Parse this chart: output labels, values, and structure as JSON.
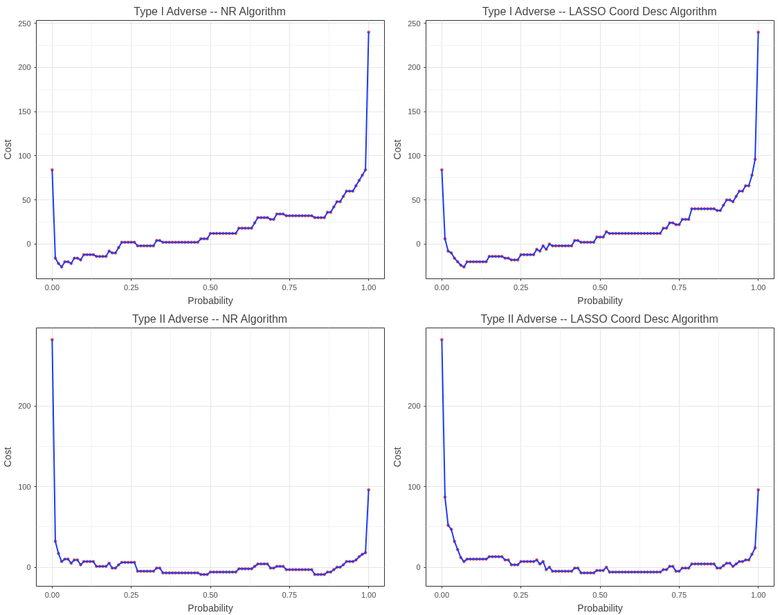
{
  "chart_data": [
    {
      "type": "line",
      "title": "Type I Adverse -- NR Algorithm",
      "xlabel": "Probability",
      "ylabel": "Cost",
      "marker": "circle",
      "grid": true,
      "xlim": [
        -0.05,
        1.05
      ],
      "xticks": [
        {
          "value": 0,
          "label": "0.00"
        },
        {
          "value": 0.25,
          "label": "0.25"
        },
        {
          "value": 0.5,
          "label": "0.50"
        },
        {
          "value": 0.75,
          "label": "0.75"
        },
        {
          "value": 1,
          "label": "1.00"
        }
      ],
      "ylim": [
        -39.3,
        253.3
      ],
      "yticks": [
        0,
        50,
        100,
        150,
        200,
        250
      ],
      "x": [
        0,
        0.01,
        0.02,
        0.03,
        0.04,
        0.05,
        0.06,
        0.07,
        0.08,
        0.09,
        0.1,
        0.11,
        0.12,
        0.13,
        0.14,
        0.15,
        0.16,
        0.17,
        0.18,
        0.19,
        0.2,
        0.21,
        0.22,
        0.23,
        0.24,
        0.25,
        0.26,
        0.27,
        0.28,
        0.29,
        0.3,
        0.31,
        0.32,
        0.33,
        0.34,
        0.35,
        0.36,
        0.37,
        0.38,
        0.39,
        0.4,
        0.41,
        0.42,
        0.43,
        0.44,
        0.45,
        0.46,
        0.47,
        0.48,
        0.49,
        0.5,
        0.51,
        0.52,
        0.53,
        0.54,
        0.55,
        0.56,
        0.57,
        0.58,
        0.59,
        0.6,
        0.61,
        0.62,
        0.63,
        0.64,
        0.65,
        0.66,
        0.67,
        0.68,
        0.69,
        0.7,
        0.71,
        0.72,
        0.73,
        0.74,
        0.75,
        0.76,
        0.77,
        0.78,
        0.79,
        0.8,
        0.81,
        0.82,
        0.83,
        0.84,
        0.85,
        0.86,
        0.87,
        0.88,
        0.89,
        0.9,
        0.91,
        0.92,
        0.93,
        0.94,
        0.95,
        0.96,
        0.97,
        0.98,
        0.99,
        1
      ],
      "series": [
        {
          "color": "#1a3cf5",
          "colors": [
            "#e8383d",
            "#e8383d",
            "#e8383d",
            "#e8383d",
            "#e8383d",
            "#e8383d",
            "#e8383d",
            "#e8383d",
            "#e8383d",
            "#e8383d",
            "#e8383d",
            "#e8383d",
            "#e8383d",
            "#e8383d",
            "#e8383d",
            "#e8383d",
            "#e8383d",
            "#e8383d",
            "#e8383d",
            "#e8383d",
            "#e8383d",
            "#e8383d",
            "#e8383d",
            "#e8383d",
            "#e8383d",
            "#e8383d",
            "#e8383d",
            "#e8383d",
            "#e8383d",
            "#e8383d",
            "#e8383d",
            "#e8383d",
            "#e8383d",
            "#e8383d",
            "#e8383d",
            "#e8383d",
            "#e8383d",
            "#e8383d",
            "#e8383d",
            "#e8383d",
            "#e8383d",
            "#e8383d",
            "#e8383d",
            "#e8383d",
            "#e8383d",
            "#e8383d",
            "#e8383d",
            "#e8383d",
            "#e8383d",
            "#e8383d",
            "#e8383d",
            "#e8383d",
            "#e8383d",
            "#e8383d",
            "#e8383d",
            "#e8383d",
            "#e8383d",
            "#e8383d",
            "#e8383d",
            "#e8383d",
            "#e8383d",
            "#e8383d",
            "#e8383d",
            "#e8383d",
            "#e8383d",
            "#e8383d",
            "#e8383d",
            "#e8383d",
            "#e8383d",
            "#e8383d",
            "#e8383d",
            "#e8383d",
            "#e8383d",
            "#e8383d",
            "#e8383d",
            "#e8383d",
            "#e8383d",
            "#e8383d",
            "#e8383d",
            "#e8383d",
            "#e8383d",
            "#e8383d",
            "#e8383d",
            "#e8383d",
            "#e8383d",
            "#e8383d",
            "#e8383d",
            "#e8383d",
            "#e8383d",
            "#e8383d",
            "#e8383d",
            "#e8383d",
            "#e8383d",
            "#e8383d",
            "#e8383d",
            "#e8383d",
            "#e8383d",
            "#e8383d",
            "#e8383d",
            "#e8383d",
            "#e8383d"
          ],
          "values": [
            84,
            -16,
            -22,
            -26,
            -20,
            -20,
            -22,
            -16,
            -16,
            -18,
            -12,
            -12,
            -12,
            -12,
            -14,
            -14,
            -14,
            -14,
            -8,
            -10,
            -10,
            -4,
            2,
            2,
            2,
            2,
            2,
            -2,
            -2,
            -2,
            -2,
            -2,
            -2,
            4,
            4,
            2,
            2,
            2,
            2,
            2,
            2,
            2,
            2,
            2,
            2,
            2,
            2,
            6,
            6,
            6,
            12,
            12,
            12,
            12,
            12,
            12,
            12,
            12,
            12,
            18,
            18,
            18,
            18,
            18,
            24,
            30,
            30,
            30,
            30,
            28,
            28,
            34,
            34,
            34,
            32,
            32,
            32,
            32,
            32,
            32,
            32,
            32,
            32,
            30,
            30,
            30,
            30,
            36,
            36,
            42,
            48,
            48,
            54,
            60,
            60,
            60,
            66,
            72,
            78,
            84,
            240
          ]
        }
      ]
    },
    {
      "type": "line",
      "title": "Type I Adverse -- LASSO Coord Desc Algorithm",
      "xlabel": "Probability",
      "ylabel": "Cost",
      "marker": "circle",
      "grid": true,
      "xlim": [
        -0.05,
        1.05
      ],
      "xticks": [
        {
          "value": 0,
          "label": "0.00"
        },
        {
          "value": 0.25,
          "label": "0.25"
        },
        {
          "value": 0.5,
          "label": "0.50"
        },
        {
          "value": 0.75,
          "label": "0.75"
        },
        {
          "value": 1,
          "label": "1.00"
        }
      ],
      "ylim": [
        -39.3,
        253.3
      ],
      "yticks": [
        0,
        50,
        100,
        150,
        200,
        250
      ],
      "x": [
        0,
        0.01,
        0.02,
        0.03,
        0.04,
        0.05,
        0.06,
        0.07,
        0.08,
        0.09,
        0.1,
        0.11,
        0.12,
        0.13,
        0.14,
        0.15,
        0.16,
        0.17,
        0.18,
        0.19,
        0.2,
        0.21,
        0.22,
        0.23,
        0.24,
        0.25,
        0.26,
        0.27,
        0.28,
        0.29,
        0.3,
        0.31,
        0.32,
        0.33,
        0.34,
        0.35,
        0.36,
        0.37,
        0.38,
        0.39,
        0.4,
        0.41,
        0.42,
        0.43,
        0.44,
        0.45,
        0.46,
        0.47,
        0.48,
        0.49,
        0.5,
        0.51,
        0.52,
        0.53,
        0.54,
        0.55,
        0.56,
        0.57,
        0.58,
        0.59,
        0.6,
        0.61,
        0.62,
        0.63,
        0.64,
        0.65,
        0.66,
        0.67,
        0.68,
        0.69,
        0.7,
        0.71,
        0.72,
        0.73,
        0.74,
        0.75,
        0.76,
        0.77,
        0.78,
        0.79,
        0.8,
        0.81,
        0.82,
        0.83,
        0.84,
        0.85,
        0.86,
        0.87,
        0.88,
        0.89,
        0.9,
        0.91,
        0.92,
        0.93,
        0.94,
        0.95,
        0.96,
        0.97,
        0.98,
        0.99,
        1
      ],
      "series": [
        {
          "color": "#1a3cf5",
          "colors": [
            "#e8383d",
            "#e8383d",
            "#e8383d",
            "#e8383d",
            "#e8383d",
            "#e8383d",
            "#e8383d",
            "#e8383d",
            "#e8383d",
            "#e8383d",
            "#e8383d",
            "#e8383d",
            "#e8383d",
            "#e8383d",
            "#e8383d",
            "#e8383d",
            "#e8383d",
            "#e8383d",
            "#e8383d",
            "#e8383d",
            "#e8383d",
            "#e8383d",
            "#e8383d",
            "#e8383d",
            "#e8383d",
            "#e8383d",
            "#e8383d",
            "#e8383d",
            "#e8383d",
            "#e8383d",
            "#e8383d",
            "#e8383d",
            "#e8383d",
            "#e8383d",
            "#e8383d",
            "#e8383d",
            "#e8383d",
            "#e8383d",
            "#e8383d",
            "#e8383d",
            "#e8383d",
            "#e8383d",
            "#e8383d",
            "#e8383d",
            "#e8383d",
            "#e8383d",
            "#e8383d",
            "#e8383d",
            "#e8383d",
            "#e8383d",
            "#e8383d",
            "#e8383d",
            "#e8383d",
            "#e8383d",
            "#e8383d",
            "#e8383d",
            "#e8383d",
            "#e8383d",
            "#e8383d",
            "#e8383d",
            "#e8383d",
            "#e8383d",
            "#e8383d",
            "#e8383d",
            "#e8383d",
            "#e8383d",
            "#e8383d",
            "#e8383d",
            "#e8383d",
            "#e8383d",
            "#e8383d",
            "#e8383d",
            "#e8383d",
            "#e8383d",
            "#e8383d",
            "#e8383d",
            "#e8383d",
            "#e8383d",
            "#e8383d",
            "#e8383d",
            "#e8383d",
            "#e8383d",
            "#e8383d",
            "#e8383d",
            "#e8383d",
            "#e8383d",
            "#e8383d",
            "#e8383d",
            "#e8383d",
            "#e8383d",
            "#e8383d",
            "#e8383d",
            "#e8383d",
            "#e8383d",
            "#e8383d",
            "#e8383d",
            "#e8383d",
            "#e8383d",
            "#e8383d",
            "#e8383d",
            "#e8383d"
          ],
          "values": [
            84,
            6,
            -8,
            -10,
            -16,
            -20,
            -24,
            -26,
            -20,
            -20,
            -20,
            -20,
            -20,
            -20,
            -20,
            -14,
            -14,
            -14,
            -14,
            -14,
            -16,
            -16,
            -18,
            -18,
            -18,
            -12,
            -12,
            -12,
            -12,
            -12,
            -6,
            -8,
            -2,
            -6,
            0,
            -2,
            -2,
            -2,
            -2,
            -2,
            -2,
            -2,
            4,
            4,
            2,
            2,
            2,
            2,
            2,
            8,
            8,
            8,
            14,
            12,
            12,
            12,
            12,
            12,
            12,
            12,
            12,
            12,
            12,
            12,
            12,
            12,
            12,
            12,
            12,
            12,
            18,
            18,
            24,
            24,
            22,
            22,
            28,
            28,
            28,
            40,
            40,
            40,
            40,
            40,
            40,
            40,
            40,
            38,
            38,
            44,
            50,
            50,
            48,
            54,
            60,
            60,
            66,
            66,
            78,
            96,
            240
          ]
        }
      ]
    },
    {
      "type": "line",
      "title": "Type II Adverse -- NR Algorithm",
      "xlabel": "Probability",
      "ylabel": "Cost",
      "marker": "circle",
      "grid": true,
      "xlim": [
        -0.05,
        1.05
      ],
      "xticks": [
        {
          "value": 0,
          "label": "0.00"
        },
        {
          "value": 0.25,
          "label": "0.25"
        },
        {
          "value": 0.5,
          "label": "0.50"
        },
        {
          "value": 0.75,
          "label": "0.75"
        },
        {
          "value": 1,
          "label": "1.00"
        }
      ],
      "ylim": [
        -23.6,
        296.6
      ],
      "yticks": [
        0,
        100,
        200
      ],
      "x": [
        0,
        0.01,
        0.02,
        0.03,
        0.04,
        0.05,
        0.06,
        0.07,
        0.08,
        0.09,
        0.1,
        0.11,
        0.12,
        0.13,
        0.14,
        0.15,
        0.16,
        0.17,
        0.18,
        0.19,
        0.2,
        0.21,
        0.22,
        0.23,
        0.24,
        0.25,
        0.26,
        0.27,
        0.28,
        0.29,
        0.3,
        0.31,
        0.32,
        0.33,
        0.34,
        0.35,
        0.36,
        0.37,
        0.38,
        0.39,
        0.4,
        0.41,
        0.42,
        0.43,
        0.44,
        0.45,
        0.46,
        0.47,
        0.48,
        0.49,
        0.5,
        0.51,
        0.52,
        0.53,
        0.54,
        0.55,
        0.56,
        0.57,
        0.58,
        0.59,
        0.6,
        0.61,
        0.62,
        0.63,
        0.64,
        0.65,
        0.66,
        0.67,
        0.68,
        0.69,
        0.7,
        0.71,
        0.72,
        0.73,
        0.74,
        0.75,
        0.76,
        0.77,
        0.78,
        0.79,
        0.8,
        0.81,
        0.82,
        0.83,
        0.84,
        0.85,
        0.86,
        0.87,
        0.88,
        0.89,
        0.9,
        0.91,
        0.92,
        0.93,
        0.94,
        0.95,
        0.96,
        0.97,
        0.98,
        0.99,
        1
      ],
      "series": [
        {
          "color": "#1a3cf5",
          "colors": [
            "#e8383d",
            "#e8383d",
            "#e8383d",
            "#e8383d",
            "#e8383d",
            "#e8383d",
            "#e8383d",
            "#e8383d",
            "#e8383d",
            "#e8383d",
            "#e8383d",
            "#e8383d",
            "#e8383d",
            "#e8383d",
            "#e8383d",
            "#e8383d",
            "#e8383d",
            "#e8383d",
            "#e8383d",
            "#e8383d",
            "#e8383d",
            "#e8383d",
            "#e8383d",
            "#e8383d",
            "#e8383d",
            "#e8383d",
            "#e8383d",
            "#e8383d",
            "#e8383d",
            "#e8383d",
            "#e8383d",
            "#e8383d",
            "#e8383d",
            "#e8383d",
            "#e8383d",
            "#e8383d",
            "#e8383d",
            "#e8383d",
            "#e8383d",
            "#e8383d",
            "#e8383d",
            "#e8383d",
            "#e8383d",
            "#e8383d",
            "#e8383d",
            "#e8383d",
            "#e8383d",
            "#e8383d",
            "#e8383d",
            "#e8383d",
            "#e8383d",
            "#e8383d",
            "#e8383d",
            "#e8383d",
            "#e8383d",
            "#e8383d",
            "#e8383d",
            "#e8383d",
            "#e8383d",
            "#e8383d",
            "#e8383d",
            "#e8383d",
            "#e8383d",
            "#e8383d",
            "#e8383d",
            "#e8383d",
            "#e8383d",
            "#e8383d",
            "#e8383d",
            "#e8383d",
            "#e8383d",
            "#e8383d",
            "#e8383d",
            "#e8383d",
            "#e8383d",
            "#e8383d",
            "#e8383d",
            "#e8383d",
            "#e8383d",
            "#e8383d",
            "#e8383d",
            "#e8383d",
            "#e8383d",
            "#e8383d",
            "#e8383d",
            "#e8383d",
            "#e8383d",
            "#e8383d",
            "#e8383d",
            "#e8383d",
            "#e8383d",
            "#e8383d",
            "#e8383d",
            "#e8383d",
            "#e8383d",
            "#e8383d",
            "#e8383d",
            "#e8383d",
            "#e8383d",
            "#e8383d",
            "#e8383d"
          ],
          "values": [
            282,
            32,
            17,
            7,
            10,
            10,
            5,
            9,
            9,
            3,
            7,
            7,
            7,
            7,
            1,
            1,
            1,
            1,
            5,
            -1,
            -1,
            3,
            6,
            6,
            6,
            6,
            6,
            -5,
            -5,
            -5,
            -5,
            -5,
            -5,
            -1,
            -1,
            -7,
            -7,
            -7,
            -7,
            -7,
            -7,
            -7,
            -7,
            -7,
            -7,
            -7,
            -7,
            -9,
            -9,
            -9,
            -6,
            -6,
            -6,
            -6,
            -6,
            -6,
            -6,
            -6,
            -6,
            -2,
            -2,
            -2,
            -2,
            -2,
            1,
            4,
            4,
            4,
            4,
            -1,
            -1,
            1,
            1,
            1,
            -3,
            -3,
            -3,
            -3,
            -3,
            -3,
            -3,
            -3,
            -3,
            -9,
            -9,
            -9,
            -9,
            -6,
            -6,
            -3,
            0,
            0,
            3,
            7,
            7,
            7,
            9,
            13,
            16,
            18,
            96
          ]
        }
      ]
    },
    {
      "type": "line",
      "title": "Type II Adverse -- LASSO Coord Desc Algorithm",
      "xlabel": "Probability",
      "ylabel": "Cost",
      "marker": "circle",
      "grid": true,
      "xlim": [
        -0.05,
        1.05
      ],
      "xticks": [
        {
          "value": 0,
          "label": "0.00"
        },
        {
          "value": 0.25,
          "label": "0.25"
        },
        {
          "value": 0.5,
          "label": "0.50"
        },
        {
          "value": 0.75,
          "label": "0.75"
        },
        {
          "value": 1,
          "label": "1.00"
        }
      ],
      "ylim": [
        -23.6,
        296.6
      ],
      "yticks": [
        0,
        100,
        200
      ],
      "x": [
        0,
        0.01,
        0.02,
        0.03,
        0.04,
        0.05,
        0.06,
        0.07,
        0.08,
        0.09,
        0.1,
        0.11,
        0.12,
        0.13,
        0.14,
        0.15,
        0.16,
        0.17,
        0.18,
        0.19,
        0.2,
        0.21,
        0.22,
        0.23,
        0.24,
        0.25,
        0.26,
        0.27,
        0.28,
        0.29,
        0.3,
        0.31,
        0.32,
        0.33,
        0.34,
        0.35,
        0.36,
        0.37,
        0.38,
        0.39,
        0.4,
        0.41,
        0.42,
        0.43,
        0.44,
        0.45,
        0.46,
        0.47,
        0.48,
        0.49,
        0.5,
        0.51,
        0.52,
        0.53,
        0.54,
        0.55,
        0.56,
        0.57,
        0.58,
        0.59,
        0.6,
        0.61,
        0.62,
        0.63,
        0.64,
        0.65,
        0.66,
        0.67,
        0.68,
        0.69,
        0.7,
        0.71,
        0.72,
        0.73,
        0.74,
        0.75,
        0.76,
        0.77,
        0.78,
        0.79,
        0.8,
        0.81,
        0.82,
        0.83,
        0.84,
        0.85,
        0.86,
        0.87,
        0.88,
        0.89,
        0.9,
        0.91,
        0.92,
        0.93,
        0.94,
        0.95,
        0.96,
        0.97,
        0.98,
        0.99,
        1
      ],
      "series": [
        {
          "color": "#1a3cf5",
          "colors": [
            "#e8383d",
            "#e8383d",
            "#e8383d",
            "#e8383d",
            "#e8383d",
            "#e8383d",
            "#e8383d",
            "#e8383d",
            "#e8383d",
            "#e8383d",
            "#e8383d",
            "#e8383d",
            "#e8383d",
            "#e8383d",
            "#e8383d",
            "#e8383d",
            "#e8383d",
            "#e8383d",
            "#e8383d",
            "#e8383d",
            "#e8383d",
            "#e8383d",
            "#e8383d",
            "#e8383d",
            "#e8383d",
            "#e8383d",
            "#e8383d",
            "#e8383d",
            "#e8383d",
            "#e8383d",
            "#e8383d",
            "#e8383d",
            "#e8383d",
            "#e8383d",
            "#e8383d",
            "#e8383d",
            "#e8383d",
            "#e8383d",
            "#e8383d",
            "#e8383d",
            "#e8383d",
            "#e8383d",
            "#e8383d",
            "#e8383d",
            "#e8383d",
            "#e8383d",
            "#e8383d",
            "#e8383d",
            "#e8383d",
            "#e8383d",
            "#e8383d",
            "#e8383d",
            "#e8383d",
            "#e8383d",
            "#e8383d",
            "#e8383d",
            "#e8383d",
            "#e8383d",
            "#e8383d",
            "#e8383d",
            "#e8383d",
            "#e8383d",
            "#e8383d",
            "#e8383d",
            "#e8383d",
            "#e8383d",
            "#e8383d",
            "#e8383d",
            "#e8383d",
            "#e8383d",
            "#e8383d",
            "#e8383d",
            "#e8383d",
            "#e8383d",
            "#e8383d",
            "#e8383d",
            "#e8383d",
            "#e8383d",
            "#e8383d",
            "#e8383d",
            "#e8383d",
            "#e8383d",
            "#e8383d",
            "#e8383d",
            "#e8383d",
            "#e8383d",
            "#e8383d",
            "#e8383d",
            "#e8383d",
            "#e8383d",
            "#e8383d",
            "#e8383d",
            "#e8383d",
            "#e8383d",
            "#e8383d",
            "#e8383d",
            "#e8383d",
            "#e8383d",
            "#e8383d",
            "#e8383d",
            "#e8383d"
          ],
          "values": [
            282,
            87,
            52,
            47,
            32,
            22,
            12,
            7,
            10,
            10,
            10,
            10,
            10,
            10,
            10,
            13,
            13,
            13,
            13,
            13,
            9,
            9,
            3,
            3,
            3,
            7,
            7,
            7,
            7,
            7,
            9,
            4,
            7,
            -3,
            0,
            -5,
            -5,
            -5,
            -5,
            -5,
            -5,
            -5,
            -1,
            -1,
            -7,
            -7,
            -7,
            -7,
            -7,
            -4,
            -4,
            -4,
            0,
            -6,
            -6,
            -6,
            -6,
            -6,
            -6,
            -6,
            -6,
            -6,
            -6,
            -6,
            -6,
            -6,
            -6,
            -6,
            -6,
            -6,
            -3,
            -3,
            1,
            1,
            -5,
            -5,
            -1,
            -1,
            -1,
            4,
            4,
            4,
            4,
            4,
            4,
            4,
            4,
            -1,
            -1,
            2,
            5,
            5,
            1,
            4,
            7,
            7,
            9,
            9,
            16,
            24,
            96
          ]
        }
      ]
    }
  ]
}
